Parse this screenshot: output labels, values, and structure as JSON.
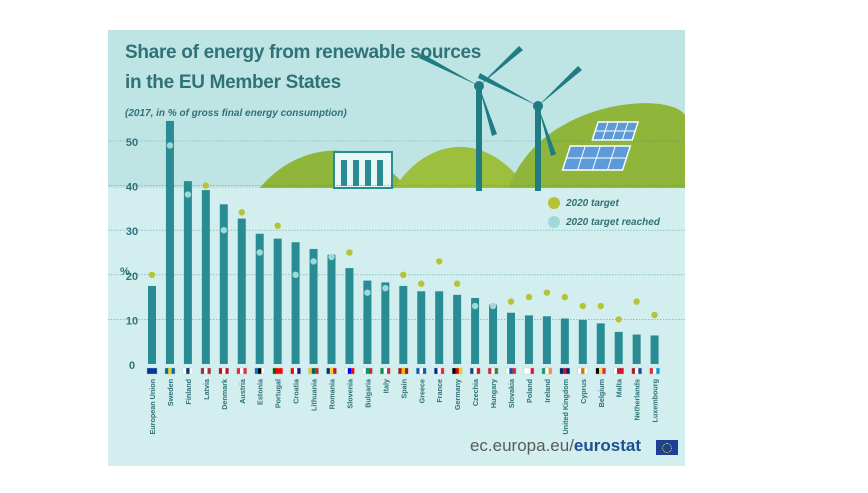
{
  "header": {
    "title_line1": "Share of energy from renewable sources",
    "title_line2": "in the EU Member States",
    "subtitle": "(2017, in % of gross final energy consumption)"
  },
  "legend": {
    "target": "2020 target",
    "reached": "2020 target reached"
  },
  "footer": {
    "source_prefix": "ec.europa.eu/",
    "source_brand": "eurostat"
  },
  "colors": {
    "bar": "#2a8c93",
    "target_dot": "#b5c334",
    "reached_dot": "#9fd8d8",
    "sky": "#bfe4e4",
    "plot_bg": "#d3eeee",
    "hill": "#8fb53a"
  },
  "chart_data": {
    "type": "bar",
    "title": "Share of energy from renewable sources in the EU Member States",
    "subtitle": "(2017, in % of gross final energy consumption)",
    "ylabel": "%",
    "ylim": [
      0,
      55
    ],
    "yticks": [
      0,
      10,
      20,
      30,
      40,
      50
    ],
    "grid": true,
    "legend_position": "top-right",
    "categories": [
      "European Union",
      "Sweden",
      "Finland",
      "Latvia",
      "Denmark",
      "Austria",
      "Estonia",
      "Portugal",
      "Croatia",
      "Lithuania",
      "Romania",
      "Slovenia",
      "Bulgaria",
      "Italy",
      "Spain",
      "Greece",
      "France",
      "Germany",
      "Czechia",
      "Hungary",
      "Slovakia",
      "Poland",
      "Ireland",
      "United Kingdom",
      "Cyprus",
      "Belgium",
      "Malta",
      "Netherlands",
      "Luxembourg"
    ],
    "values": [
      17.5,
      54.5,
      41.0,
      39.0,
      35.8,
      32.6,
      29.2,
      28.1,
      27.3,
      25.8,
      24.5,
      21.5,
      18.7,
      18.3,
      17.5,
      16.3,
      16.3,
      15.5,
      14.8,
      13.3,
      11.5,
      10.9,
      10.7,
      10.2,
      9.9,
      9.1,
      7.2,
      6.6,
      6.4
    ],
    "series": [
      {
        "name": "2020 target",
        "values": [
          20,
          null,
          null,
          40,
          null,
          34,
          null,
          31,
          null,
          null,
          null,
          25,
          null,
          null,
          20,
          18,
          23,
          18,
          null,
          null,
          14,
          15,
          16,
          15,
          13,
          13,
          10,
          14,
          11
        ]
      },
      {
        "name": "2020 target reached",
        "values": [
          null,
          49,
          38,
          null,
          30,
          null,
          25,
          null,
          20,
          23,
          24,
          null,
          16,
          17,
          null,
          null,
          null,
          null,
          13,
          13,
          null,
          null,
          null,
          null,
          null,
          null,
          null,
          null,
          null
        ]
      }
    ],
    "flags": [
      [
        "#003399",
        "#003399",
        "#003399"
      ],
      [
        "#006aa7",
        "#fecc00",
        "#006aa7"
      ],
      [
        "#ffffff",
        "#003580",
        "#ffffff"
      ],
      [
        "#9e3039",
        "#ffffff",
        "#9e3039"
      ],
      [
        "#c60c30",
        "#ffffff",
        "#c60c30"
      ],
      [
        "#ed2939",
        "#ffffff",
        "#ed2939"
      ],
      [
        "#0072ce",
        "#000000",
        "#ffffff"
      ],
      [
        "#006600",
        "#ff0000",
        "#ff0000"
      ],
      [
        "#ff0000",
        "#ffffff",
        "#171796"
      ],
      [
        "#fdb913",
        "#006a44",
        "#c1272d"
      ],
      [
        "#002b7f",
        "#fcd116",
        "#ce1126"
      ],
      [
        "#ffffff",
        "#0000ff",
        "#ff0000"
      ],
      [
        "#ffffff",
        "#00966e",
        "#d62612"
      ],
      [
        "#009246",
        "#ffffff",
        "#ce2b37"
      ],
      [
        "#aa151b",
        "#f1bf00",
        "#aa151b"
      ],
      [
        "#0d5eaf",
        "#ffffff",
        "#0d5eaf"
      ],
      [
        "#002395",
        "#ffffff",
        "#ed2939"
      ],
      [
        "#000000",
        "#dd0000",
        "#ffce00"
      ],
      [
        "#11457e",
        "#ffffff",
        "#d7141a"
      ],
      [
        "#ce2939",
        "#ffffff",
        "#477050"
      ],
      [
        "#ffffff",
        "#0b4ea2",
        "#ee1c25"
      ],
      [
        "#ffffff",
        "#ffffff",
        "#dc143c"
      ],
      [
        "#169b62",
        "#ffffff",
        "#ff883e"
      ],
      [
        "#012169",
        "#c8102e",
        "#012169"
      ],
      [
        "#ffffff",
        "#d57800",
        "#ffffff"
      ],
      [
        "#000000",
        "#fae042",
        "#ed2939"
      ],
      [
        "#ffffff",
        "#cf142b",
        "#cf142b"
      ],
      [
        "#ae1c28",
        "#ffffff",
        "#21468b"
      ],
      [
        "#ed2939",
        "#ffffff",
        "#00a1de"
      ]
    ]
  }
}
